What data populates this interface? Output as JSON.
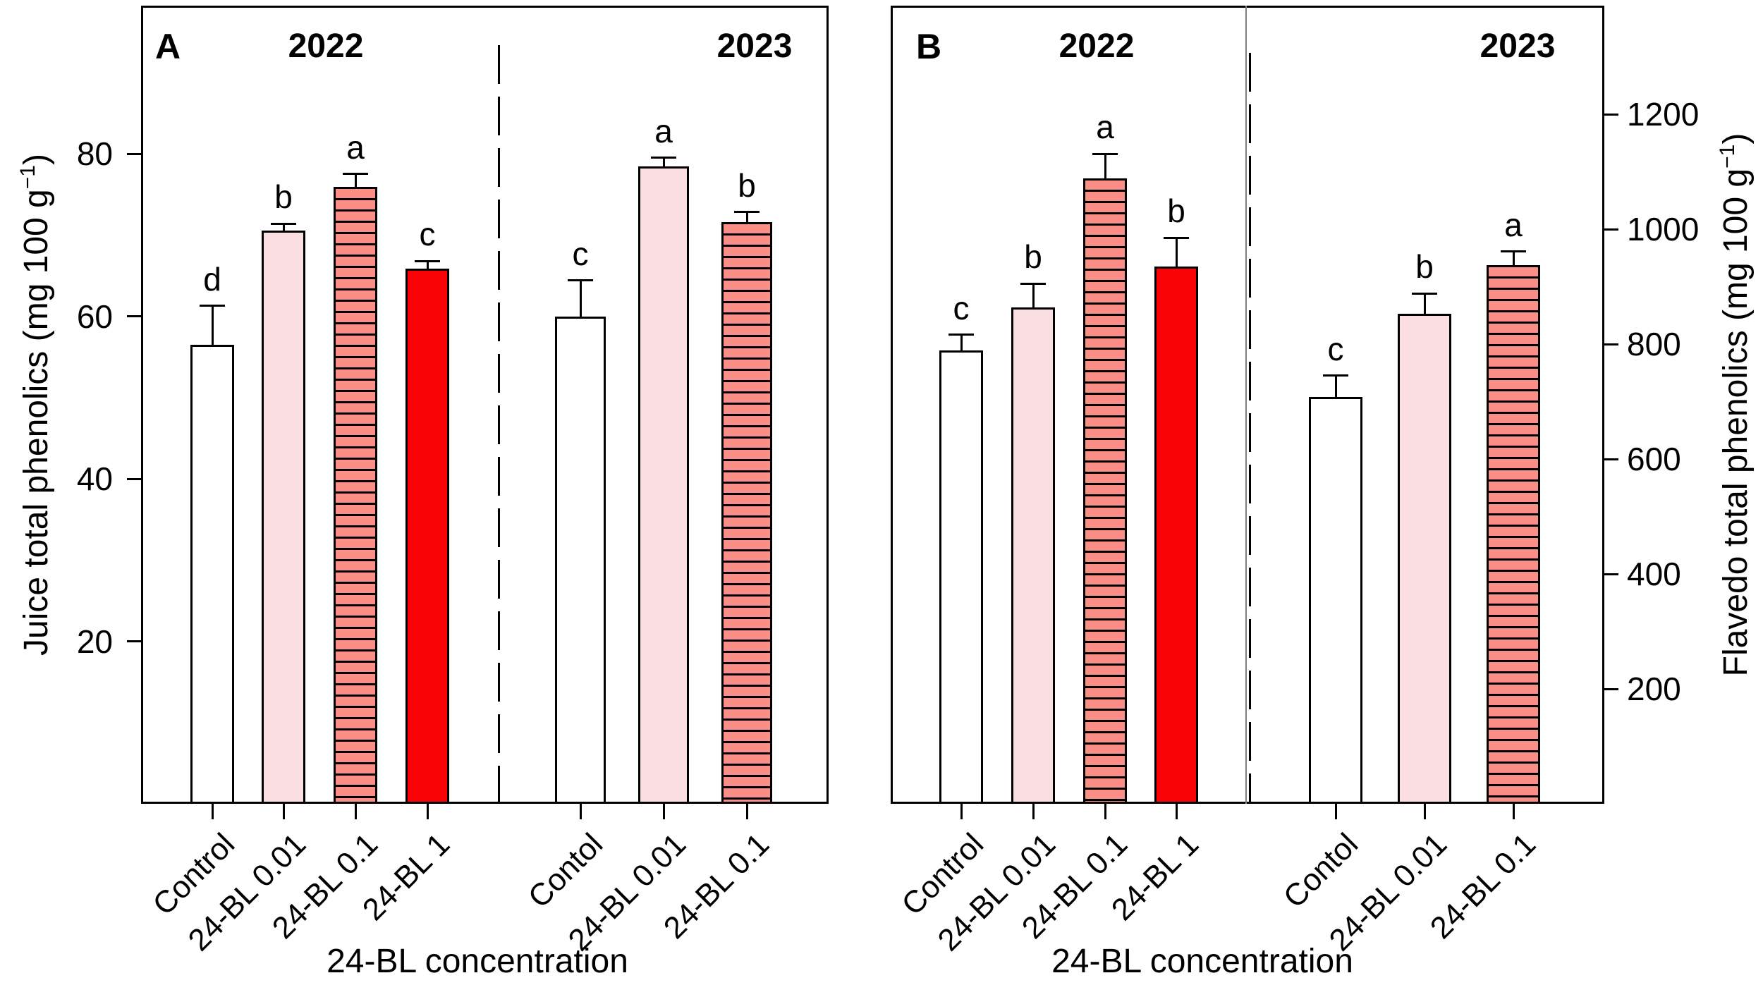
{
  "figure": {
    "background": "#ffffff",
    "ink_color": "#000000",
    "divider_gray": "#7f7f7f"
  },
  "colors": {
    "control_fill": "#ffffff",
    "bl_001_fill": "#fbdee2",
    "bl_01_fill": "#fb8e86",
    "bl_1_fill": "#f90307",
    "hatch_line": "#000000"
  },
  "chart_data": [
    {
      "type": "bar",
      "panel_label": "A",
      "ylabel_main": "Juice total phenolics (mg 100 g",
      "ylabel_sup": "−1",
      "ylabel_end": ")",
      "xlabel": "24-BL concentration",
      "ylim": [
        0,
        100
      ],
      "yticks": [
        20,
        40,
        60,
        80
      ],
      "grid": false,
      "legend": "none",
      "error_bars": "upper, one-sided with cap",
      "groups": [
        {
          "year": "2022",
          "bars": [
            {
              "label": "Control",
              "value": 56.5,
              "error": 4.8,
              "letter": "d",
              "style": "white"
            },
            {
              "label": "24-BL 0.01",
              "value": 70.5,
              "error": 0.9,
              "letter": "b",
              "style": "pink"
            },
            {
              "label": "24-BL 0.1",
              "value": 75.9,
              "error": 1.6,
              "letter": "a",
              "style": "hatched"
            },
            {
              "label": "24-BL 1",
              "value": 65.9,
              "error": 0.9,
              "letter": "c",
              "style": "red"
            }
          ]
        },
        {
          "year": "2023",
          "bars": [
            {
              "label": "Contol",
              "value": 60.0,
              "error": 4.4,
              "letter": "c",
              "style": "white"
            },
            {
              "label": "24-BL 0.01",
              "value": 78.4,
              "error": 1.1,
              "letter": "a",
              "style": "pink"
            },
            {
              "label": "24-BL 0.1",
              "value": 71.6,
              "error": 1.2,
              "letter": "b",
              "style": "hatched"
            }
          ]
        }
      ]
    },
    {
      "type": "bar",
      "panel_label": "B",
      "ylabel_main": "Flavedo total phenolics (mg 100 g",
      "ylabel_sup": "−1",
      "ylabel_end": ")",
      "xlabel": "24-BL concentration",
      "ylim": [
        0,
        1400
      ],
      "yticks": [
        200,
        400,
        600,
        800,
        1000,
        1200
      ],
      "grid": false,
      "legend": "none",
      "error_bars": "upper, one-sided with cap",
      "groups": [
        {
          "year": "2022",
          "bars": [
            {
              "label": "Control",
              "value": 789,
              "error": 27,
              "letter": "c",
              "style": "white"
            },
            {
              "label": "24-BL 0.01",
              "value": 864,
              "error": 41,
              "letter": "b",
              "style": "pink"
            },
            {
              "label": "24-BL 0.1",
              "value": 1088,
              "error": 43,
              "letter": "a",
              "style": "hatched"
            },
            {
              "label": "24-BL 1",
              "value": 935,
              "error": 50,
              "letter": "b",
              "style": "red"
            }
          ]
        },
        {
          "year": "2023",
          "bars": [
            {
              "label": "Contol",
              "value": 708,
              "error": 37,
              "letter": "c",
              "style": "white"
            },
            {
              "label": "24-BL 0.01",
              "value": 853,
              "error": 35,
              "letter": "b",
              "style": "pink"
            },
            {
              "label": "24-BL 0.1",
              "value": 937,
              "error": 24,
              "letter": "a",
              "style": "hatched"
            }
          ]
        }
      ]
    }
  ]
}
